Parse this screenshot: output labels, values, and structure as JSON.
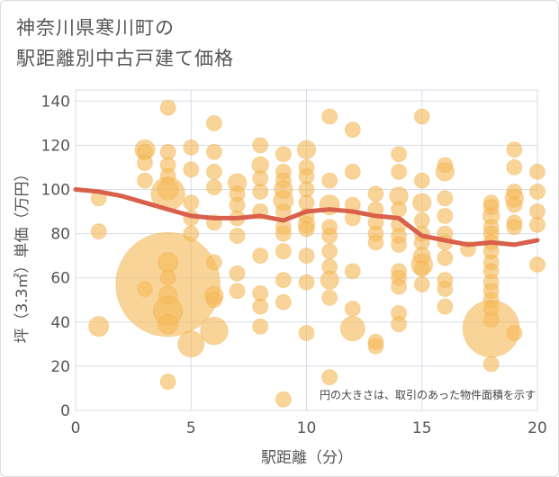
{
  "title_lines": [
    "神奈川県寒川町の",
    "駅距離別中古戸建て価格"
  ],
  "chart_data": {
    "type": "scatter",
    "xlabel": "駅距離（分）",
    "ylabel": "坪（3.3㎡）単価（万円）",
    "xlim": [
      0,
      20
    ],
    "ylim": [
      0,
      145
    ],
    "x_ticks": [
      "0",
      "5",
      "10",
      "15",
      "20"
    ],
    "y_ticks": [
      "0",
      "20",
      "40",
      "60",
      "80",
      "100",
      "120",
      "140"
    ],
    "grid": true,
    "annotation": "円の大きさは、取引のあった物件面積を示す",
    "bubble_color": "#f5b95a",
    "line_color": "#d9604a",
    "trend_line": {
      "x": [
        0,
        1,
        2,
        3,
        4,
        5,
        6,
        7,
        8,
        9,
        10,
        11,
        12,
        13,
        14,
        15,
        16,
        17,
        18,
        19,
        20
      ],
      "y": [
        100,
        99,
        97,
        94,
        91,
        88,
        87,
        87,
        88,
        86,
        90,
        91,
        90,
        88,
        87,
        79,
        77,
        75,
        76,
        75,
        77
      ]
    },
    "points": [
      {
        "x": 1,
        "y": 96,
        "s": 1
      },
      {
        "x": 1,
        "y": 81,
        "s": 1
      },
      {
        "x": 1,
        "y": 38,
        "s": 1.3
      },
      {
        "x": 3,
        "y": 118,
        "s": 1.3
      },
      {
        "x": 3,
        "y": 117,
        "s": 1
      },
      {
        "x": 3,
        "y": 112,
        "s": 1
      },
      {
        "x": 3,
        "y": 104,
        "s": 1
      },
      {
        "x": 3,
        "y": 55,
        "s": 1
      },
      {
        "x": 4,
        "y": 137,
        "s": 1
      },
      {
        "x": 4,
        "y": 117,
        "s": 1
      },
      {
        "x": 4,
        "y": 111,
        "s": 1
      },
      {
        "x": 4,
        "y": 106,
        "s": 1
      },
      {
        "x": 4,
        "y": 100,
        "s": 1.4
      },
      {
        "x": 4,
        "y": 98,
        "s": 2.2
      },
      {
        "x": 4,
        "y": 57,
        "s": 6.8
      },
      {
        "x": 4,
        "y": 67,
        "s": 1.3
      },
      {
        "x": 4,
        "y": 60,
        "s": 1
      },
      {
        "x": 4,
        "y": 52,
        "s": 1.2
      },
      {
        "x": 4,
        "y": 45,
        "s": 1.9
      },
      {
        "x": 4,
        "y": 39,
        "s": 1.3
      },
      {
        "x": 4,
        "y": 13,
        "s": 1
      },
      {
        "x": 5,
        "y": 119,
        "s": 1
      },
      {
        "x": 5,
        "y": 109,
        "s": 1
      },
      {
        "x": 5,
        "y": 94,
        "s": 1
      },
      {
        "x": 5,
        "y": 87,
        "s": 1
      },
      {
        "x": 5,
        "y": 80,
        "s": 1
      },
      {
        "x": 5,
        "y": 30,
        "s": 1.7
      },
      {
        "x": 6,
        "y": 130,
        "s": 1
      },
      {
        "x": 6,
        "y": 117,
        "s": 1
      },
      {
        "x": 6,
        "y": 108,
        "s": 1
      },
      {
        "x": 6,
        "y": 101,
        "s": 1
      },
      {
        "x": 6,
        "y": 85,
        "s": 1
      },
      {
        "x": 6,
        "y": 67,
        "s": 1
      },
      {
        "x": 6,
        "y": 52,
        "s": 1.2
      },
      {
        "x": 6,
        "y": 50,
        "s": 1
      },
      {
        "x": 6,
        "y": 36,
        "s": 1.8
      },
      {
        "x": 7,
        "y": 103,
        "s": 1.2
      },
      {
        "x": 7,
        "y": 98,
        "s": 1
      },
      {
        "x": 7,
        "y": 93,
        "s": 1
      },
      {
        "x": 7,
        "y": 87,
        "s": 1
      },
      {
        "x": 7,
        "y": 79,
        "s": 1
      },
      {
        "x": 7,
        "y": 62,
        "s": 1
      },
      {
        "x": 7,
        "y": 54,
        "s": 1
      },
      {
        "x": 8,
        "y": 120,
        "s": 1
      },
      {
        "x": 8,
        "y": 111,
        "s": 1.1
      },
      {
        "x": 8,
        "y": 105,
        "s": 1
      },
      {
        "x": 8,
        "y": 99,
        "s": 1
      },
      {
        "x": 8,
        "y": 90,
        "s": 1
      },
      {
        "x": 8,
        "y": 70,
        "s": 1
      },
      {
        "x": 8,
        "y": 53,
        "s": 1
      },
      {
        "x": 8,
        "y": 47,
        "s": 1
      },
      {
        "x": 8,
        "y": 38,
        "s": 1
      },
      {
        "x": 9,
        "y": 116,
        "s": 1
      },
      {
        "x": 9,
        "y": 108,
        "s": 1
      },
      {
        "x": 9,
        "y": 104,
        "s": 1
      },
      {
        "x": 9,
        "y": 100,
        "s": 1.2
      },
      {
        "x": 9,
        "y": 95,
        "s": 1.3
      },
      {
        "x": 9,
        "y": 90,
        "s": 1
      },
      {
        "x": 9,
        "y": 83,
        "s": 1
      },
      {
        "x": 9,
        "y": 80,
        "s": 1
      },
      {
        "x": 9,
        "y": 72,
        "s": 1
      },
      {
        "x": 9,
        "y": 59,
        "s": 1
      },
      {
        "x": 9,
        "y": 49,
        "s": 1
      },
      {
        "x": 9,
        "y": 5,
        "s": 1
      },
      {
        "x": 10,
        "y": 118,
        "s": 1.2
      },
      {
        "x": 10,
        "y": 110,
        "s": 1
      },
      {
        "x": 10,
        "y": 106,
        "s": 1
      },
      {
        "x": 10,
        "y": 100,
        "s": 1
      },
      {
        "x": 10,
        "y": 94,
        "s": 1
      },
      {
        "x": 10,
        "y": 88,
        "s": 1
      },
      {
        "x": 10,
        "y": 84,
        "s": 1.1
      },
      {
        "x": 10,
        "y": 82,
        "s": 1
      },
      {
        "x": 10,
        "y": 70,
        "s": 1
      },
      {
        "x": 10,
        "y": 58,
        "s": 1
      },
      {
        "x": 10,
        "y": 35,
        "s": 1
      },
      {
        "x": 11,
        "y": 133,
        "s": 1
      },
      {
        "x": 11,
        "y": 104,
        "s": 1
      },
      {
        "x": 11,
        "y": 93,
        "s": 1.3
      },
      {
        "x": 11,
        "y": 83,
        "s": 1
      },
      {
        "x": 11,
        "y": 79,
        "s": 1
      },
      {
        "x": 11,
        "y": 72,
        "s": 1
      },
      {
        "x": 11,
        "y": 65,
        "s": 1
      },
      {
        "x": 11,
        "y": 59,
        "s": 1.2
      },
      {
        "x": 11,
        "y": 51,
        "s": 1
      },
      {
        "x": 11,
        "y": 15,
        "s": 1
      },
      {
        "x": 12,
        "y": 127,
        "s": 1
      },
      {
        "x": 12,
        "y": 108,
        "s": 1
      },
      {
        "x": 12,
        "y": 93,
        "s": 1
      },
      {
        "x": 12,
        "y": 87,
        "s": 1
      },
      {
        "x": 12,
        "y": 63,
        "s": 1
      },
      {
        "x": 12,
        "y": 46,
        "s": 1
      },
      {
        "x": 12,
        "y": 37,
        "s": 1.6
      },
      {
        "x": 13,
        "y": 98,
        "s": 1
      },
      {
        "x": 13,
        "y": 91,
        "s": 1
      },
      {
        "x": 13,
        "y": 85,
        "s": 1
      },
      {
        "x": 13,
        "y": 80,
        "s": 1
      },
      {
        "x": 13,
        "y": 76,
        "s": 1
      },
      {
        "x": 13,
        "y": 31,
        "s": 1
      },
      {
        "x": 13,
        "y": 29,
        "s": 1
      },
      {
        "x": 14,
        "y": 116,
        "s": 1
      },
      {
        "x": 14,
        "y": 108,
        "s": 1
      },
      {
        "x": 14,
        "y": 97,
        "s": 1.2
      },
      {
        "x": 14,
        "y": 91,
        "s": 1
      },
      {
        "x": 14,
        "y": 84,
        "s": 1
      },
      {
        "x": 14,
        "y": 79,
        "s": 1
      },
      {
        "x": 14,
        "y": 75,
        "s": 1
      },
      {
        "x": 14,
        "y": 63,
        "s": 1
      },
      {
        "x": 14,
        "y": 60,
        "s": 1
      },
      {
        "x": 14,
        "y": 56,
        "s": 1
      },
      {
        "x": 14,
        "y": 44,
        "s": 1
      },
      {
        "x": 14,
        "y": 39,
        "s": 1
      },
      {
        "x": 15,
        "y": 133,
        "s": 1
      },
      {
        "x": 15,
        "y": 104,
        "s": 1
      },
      {
        "x": 15,
        "y": 94,
        "s": 1.2
      },
      {
        "x": 15,
        "y": 86,
        "s": 1
      },
      {
        "x": 15,
        "y": 80,
        "s": 1
      },
      {
        "x": 15,
        "y": 76,
        "s": 1
      },
      {
        "x": 15,
        "y": 70,
        "s": 1.1
      },
      {
        "x": 15,
        "y": 66,
        "s": 1.4
      },
      {
        "x": 15,
        "y": 64,
        "s": 1
      },
      {
        "x": 15,
        "y": 57,
        "s": 1
      },
      {
        "x": 16,
        "y": 111,
        "s": 1
      },
      {
        "x": 16,
        "y": 108,
        "s": 1.2
      },
      {
        "x": 16,
        "y": 96,
        "s": 1
      },
      {
        "x": 16,
        "y": 88,
        "s": 1
      },
      {
        "x": 16,
        "y": 80,
        "s": 1
      },
      {
        "x": 16,
        "y": 76,
        "s": 1
      },
      {
        "x": 16,
        "y": 69,
        "s": 1
      },
      {
        "x": 16,
        "y": 59,
        "s": 1
      },
      {
        "x": 16,
        "y": 55,
        "s": 1
      },
      {
        "x": 16,
        "y": 47,
        "s": 1
      },
      {
        "x": 17,
        "y": 73,
        "s": 1
      },
      {
        "x": 18,
        "y": 94,
        "s": 1
      },
      {
        "x": 18,
        "y": 92,
        "s": 1
      },
      {
        "x": 18,
        "y": 88,
        "s": 1.1
      },
      {
        "x": 18,
        "y": 83,
        "s": 1
      },
      {
        "x": 18,
        "y": 80,
        "s": 1
      },
      {
        "x": 18,
        "y": 76,
        "s": 1
      },
      {
        "x": 18,
        "y": 72,
        "s": 1
      },
      {
        "x": 18,
        "y": 67,
        "s": 1
      },
      {
        "x": 18,
        "y": 63,
        "s": 1
      },
      {
        "x": 18,
        "y": 58,
        "s": 1
      },
      {
        "x": 18,
        "y": 54,
        "s": 1
      },
      {
        "x": 18,
        "y": 50,
        "s": 1
      },
      {
        "x": 18,
        "y": 46,
        "s": 1
      },
      {
        "x": 18,
        "y": 41,
        "s": 1
      },
      {
        "x": 18,
        "y": 37,
        "s": 3.7
      },
      {
        "x": 18,
        "y": 21,
        "s": 1
      },
      {
        "x": 19,
        "y": 118,
        "s": 1
      },
      {
        "x": 19,
        "y": 110,
        "s": 1
      },
      {
        "x": 19,
        "y": 99,
        "s": 1
      },
      {
        "x": 19,
        "y": 96,
        "s": 1.2
      },
      {
        "x": 19,
        "y": 93,
        "s": 1
      },
      {
        "x": 19,
        "y": 85,
        "s": 1
      },
      {
        "x": 19,
        "y": 83,
        "s": 1
      },
      {
        "x": 19,
        "y": 35,
        "s": 1
      },
      {
        "x": 20,
        "y": 108,
        "s": 1
      },
      {
        "x": 20,
        "y": 99,
        "s": 1
      },
      {
        "x": 20,
        "y": 90,
        "s": 1
      },
      {
        "x": 20,
        "y": 84,
        "s": 1
      },
      {
        "x": 20,
        "y": 66,
        "s": 1
      }
    ]
  }
}
